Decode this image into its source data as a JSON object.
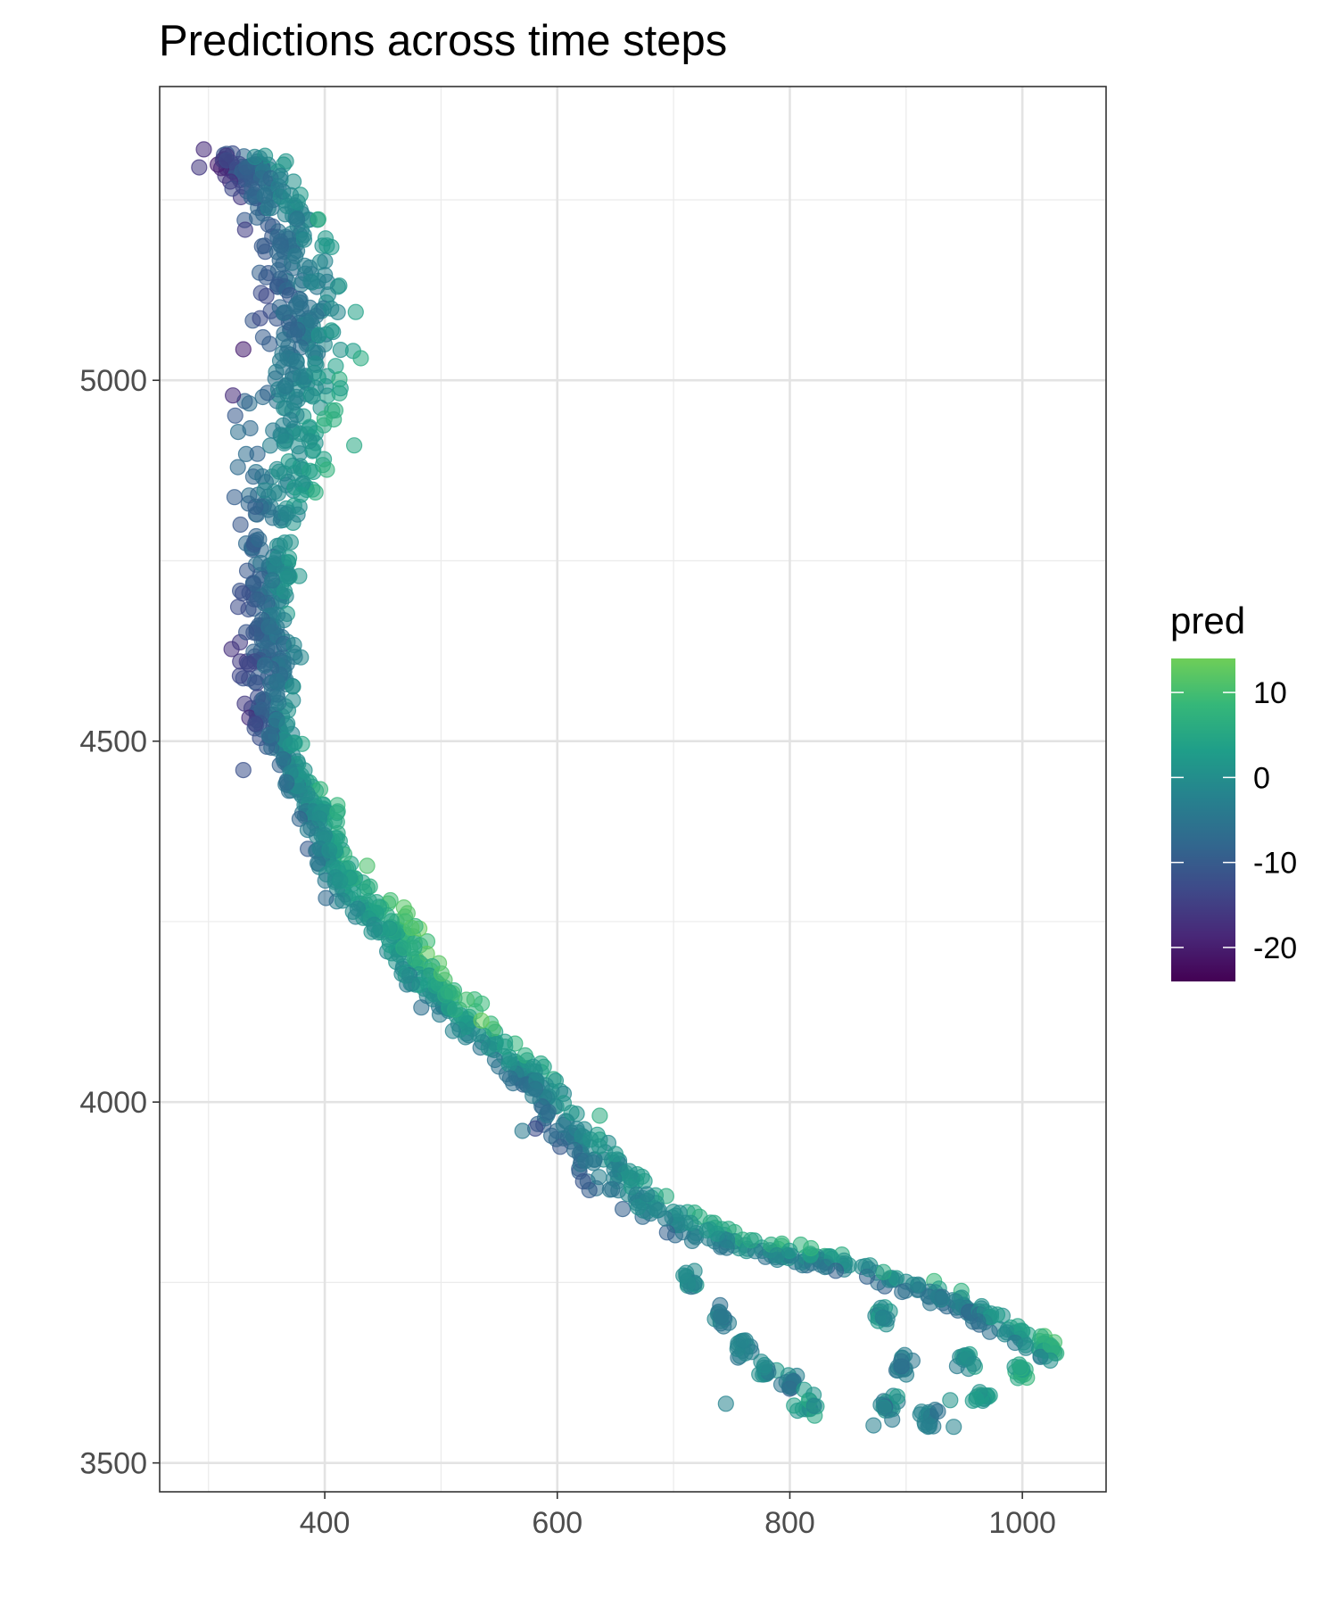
{
  "chart_data": {
    "type": "scatter",
    "title": "Predictions across time steps",
    "xlabel": "",
    "ylabel": "",
    "xlim": [
      258,
      1072
    ],
    "ylim": [
      3460,
      5407
    ],
    "x_ticks": [
      400,
      600,
      800,
      1000
    ],
    "x_tick_labels": [
      "400",
      "600",
      "800",
      "1000"
    ],
    "y_ticks": [
      3500,
      4000,
      4500,
      5000
    ],
    "y_tick_labels": [
      "3500",
      "4000",
      "4500",
      "5000"
    ],
    "grid": true,
    "color_variable": "pred",
    "colorbar": {
      "title": "pred",
      "min": -24,
      "max": 14,
      "ticks": [
        -20,
        -10,
        0,
        10
      ],
      "tick_labels": [
        "-20",
        "-10",
        "0",
        "10"
      ],
      "palette": "viridis",
      "colors": [
        "#440154",
        "#482878",
        "#3e4a89",
        "#31688e",
        "#26828e",
        "#1f9e89",
        "#35b779",
        "#6ece58"
      ]
    },
    "point_alpha": 0.55,
    "legend_position": "right",
    "trend": [
      {
        "x": 312,
        "y": 5312,
        "spread": 14,
        "pred": -14
      },
      {
        "x": 352,
        "y": 5280,
        "spread": 26,
        "pred": -4
      },
      {
        "x": 372,
        "y": 5200,
        "spread": 32,
        "pred": -4
      },
      {
        "x": 380,
        "y": 5120,
        "spread": 38,
        "pred": -6
      },
      {
        "x": 382,
        "y": 5050,
        "spread": 42,
        "pred": -4
      },
      {
        "x": 378,
        "y": 4970,
        "spread": 42,
        "pred": 0
      },
      {
        "x": 368,
        "y": 4870,
        "spread": 38,
        "pred": 0
      },
      {
        "x": 352,
        "y": 4760,
        "spread": 22,
        "pred": -4
      },
      {
        "x": 352,
        "y": 4680,
        "spread": 22,
        "pred": -5
      },
      {
        "x": 350,
        "y": 4610,
        "spread": 26,
        "pred": -9
      },
      {
        "x": 355,
        "y": 4530,
        "spread": 18,
        "pred": -6
      },
      {
        "x": 370,
        "y": 4460,
        "spread": 12,
        "pred": -2
      },
      {
        "x": 395,
        "y": 4400,
        "spread": 15,
        "pred": 0
      },
      {
        "x": 410,
        "y": 4320,
        "spread": 18,
        "pred": 2
      },
      {
        "x": 450,
        "y": 4250,
        "spread": 20,
        "pred": 4
      },
      {
        "x": 480,
        "y": 4185,
        "spread": 18,
        "pred": 4
      },
      {
        "x": 520,
        "y": 4110,
        "spread": 16,
        "pred": 2
      },
      {
        "x": 580,
        "y": 4030,
        "spread": 18,
        "pred": -2
      },
      {
        "x": 620,
        "y": 3940,
        "spread": 26,
        "pred": -4
      },
      {
        "x": 670,
        "y": 3860,
        "spread": 24,
        "pred": -2
      },
      {
        "x": 760,
        "y": 3800,
        "spread": 12,
        "pred": 1
      },
      {
        "x": 860,
        "y": 3770,
        "spread": 10,
        "pred": -2
      },
      {
        "x": 960,
        "y": 3710,
        "spread": 16,
        "pred": -3
      },
      {
        "x": 1030,
        "y": 3650,
        "spread": 10,
        "pred": 6
      }
    ],
    "branches": [
      {
        "x": 715,
        "y": 3755,
        "pred": -1
      },
      {
        "x": 740,
        "y": 3700,
        "pred": -4
      },
      {
        "x": 760,
        "y": 3660,
        "pred": -2
      },
      {
        "x": 780,
        "y": 3630,
        "pred": 0
      },
      {
        "x": 800,
        "y": 3610,
        "pred": -4
      },
      {
        "x": 815,
        "y": 3580,
        "pred": 2
      },
      {
        "x": 880,
        "y": 3700,
        "pred": 1
      },
      {
        "x": 895,
        "y": 3640,
        "pred": -3
      },
      {
        "x": 885,
        "y": 3580,
        "pred": -2
      },
      {
        "x": 920,
        "y": 3560,
        "pred": -3
      },
      {
        "x": 950,
        "y": 3640,
        "pred": 0
      },
      {
        "x": 965,
        "y": 3590,
        "pred": 3
      },
      {
        "x": 1000,
        "y": 3630,
        "pred": 5
      }
    ],
    "outliers": [
      {
        "x": 296,
        "y": 5320,
        "pred": -18
      },
      {
        "x": 292,
        "y": 5295,
        "pred": -16
      },
      {
        "x": 330,
        "y": 5043,
        "pred": -20
      },
      {
        "x": 321,
        "y": 4979,
        "pred": -18
      },
      {
        "x": 330,
        "y": 4460,
        "pred": -12
      },
      {
        "x": 483,
        "y": 4131,
        "pred": -6
      },
      {
        "x": 562,
        "y": 4026,
        "pred": -6
      },
      {
        "x": 570,
        "y": 3960,
        "pred": -4
      },
      {
        "x": 745,
        "y": 3582,
        "pred": -2
      },
      {
        "x": 872,
        "y": 3552,
        "pred": -3
      },
      {
        "x": 888,
        "y": 3560,
        "pred": -4
      },
      {
        "x": 920,
        "y": 3551,
        "pred": -3
      },
      {
        "x": 938,
        "y": 3587,
        "pred": 1
      },
      {
        "x": 941,
        "y": 3550,
        "pred": -2
      }
    ],
    "points_per_segment": 60
  }
}
